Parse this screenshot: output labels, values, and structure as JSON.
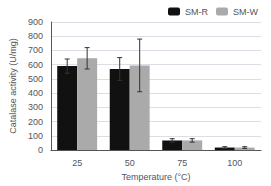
{
  "chart_data": {
    "type": "bar",
    "xlabel": "Temperature (°C)",
    "ylabel": "Catalase activity (U/mg)",
    "categories": [
      "25",
      "50",
      "75",
      "100"
    ],
    "series": [
      {
        "name": "SM-R",
        "color": "#111111",
        "values": [
          590,
          570,
          68,
          18
        ],
        "errors": [
          50,
          80,
          12,
          6
        ]
      },
      {
        "name": "SM-W",
        "color": "#aaaaaa",
        "values": [
          645,
          595,
          68,
          18
        ],
        "errors": [
          75,
          185,
          12,
          6
        ]
      }
    ],
    "ylim": [
      0,
      900
    ],
    "yticks": [
      0,
      100,
      200,
      300,
      400,
      500,
      600,
      700,
      800,
      900
    ],
    "grid": true,
    "legend": "upper right"
  }
}
